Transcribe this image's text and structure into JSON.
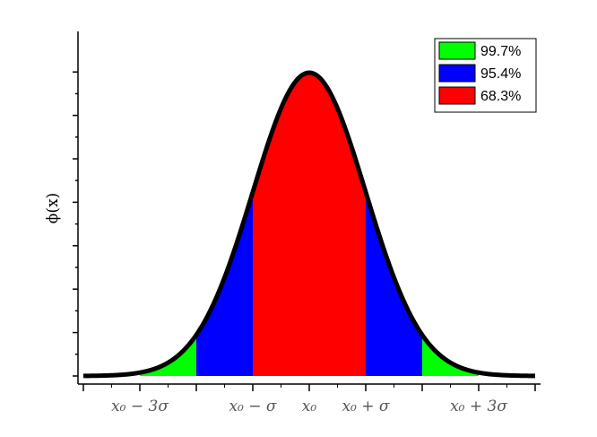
{
  "chart_data": {
    "type": "area",
    "title": "",
    "xlabel": "",
    "ylabel": "ϕ(x)",
    "distribution": "normal",
    "x_range_sigma": [
      -4,
      4
    ],
    "ylim": [
      0,
      1.05
    ],
    "x_ticks": [
      -3,
      -1,
      0,
      1,
      3
    ],
    "x_tick_labels": [
      "x₀ − 3σ",
      "x₀ − σ",
      "x₀",
      "x₀ + σ",
      "x₀ + 3σ"
    ],
    "curve_color": "#000000",
    "grid": false,
    "legend_position": "top-right",
    "series": [
      {
        "name": "99.7%",
        "range_sigma": [
          -3,
          3
        ],
        "color": "#00ff00"
      },
      {
        "name": "95.4%",
        "range_sigma": [
          -2,
          2
        ],
        "color": "#0000ff"
      },
      {
        "name": "68.3%",
        "range_sigma": [
          -1,
          1
        ],
        "color": "#ff0000"
      }
    ]
  }
}
